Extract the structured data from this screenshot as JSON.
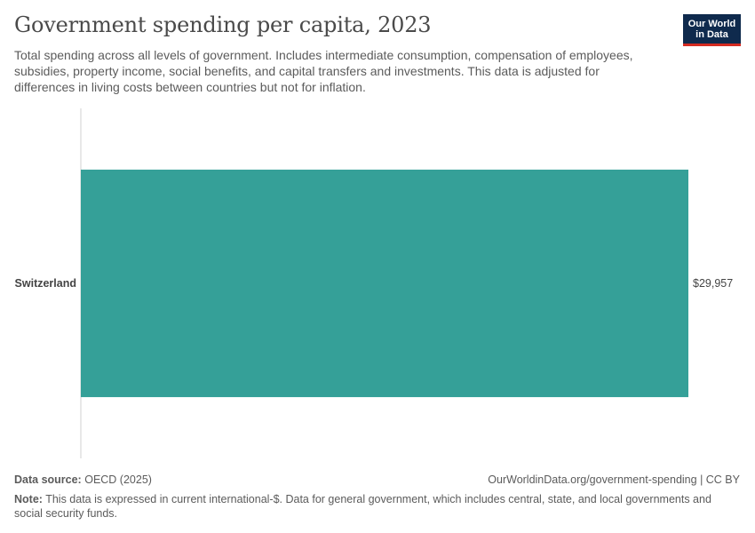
{
  "header": {
    "title": "Government spending per capita, 2023",
    "subtitle": "Total spending across all levels of government. Includes intermediate consumption, compensation of employees, subsidies, property income, social benefits, and capital transfers and investments. This data is adjusted for differences in living costs between countries but not for inflation."
  },
  "logo": {
    "line1": "Our World",
    "line2": "in Data"
  },
  "colors": {
    "bar": "#35a098",
    "axis": "#d0d0d0",
    "label": "#444444",
    "logo_bg": "#0f2a4d",
    "logo_accent": "#d42b21"
  },
  "chart_data": {
    "type": "bar",
    "orientation": "horizontal",
    "categories": [
      "Switzerland"
    ],
    "values": [
      29957
    ],
    "value_labels": [
      "$29,957"
    ],
    "xlim": [
      0,
      29957
    ],
    "grid": false
  },
  "footer": {
    "source_label": "Data source:",
    "source_value": "OECD (2025)",
    "url": "OurWorldinData.org/government-spending | CC BY",
    "note_label": "Note:",
    "note_text": "This data is expressed in current international-$. Data for general government, which includes central, state, and local governments and social security funds."
  }
}
